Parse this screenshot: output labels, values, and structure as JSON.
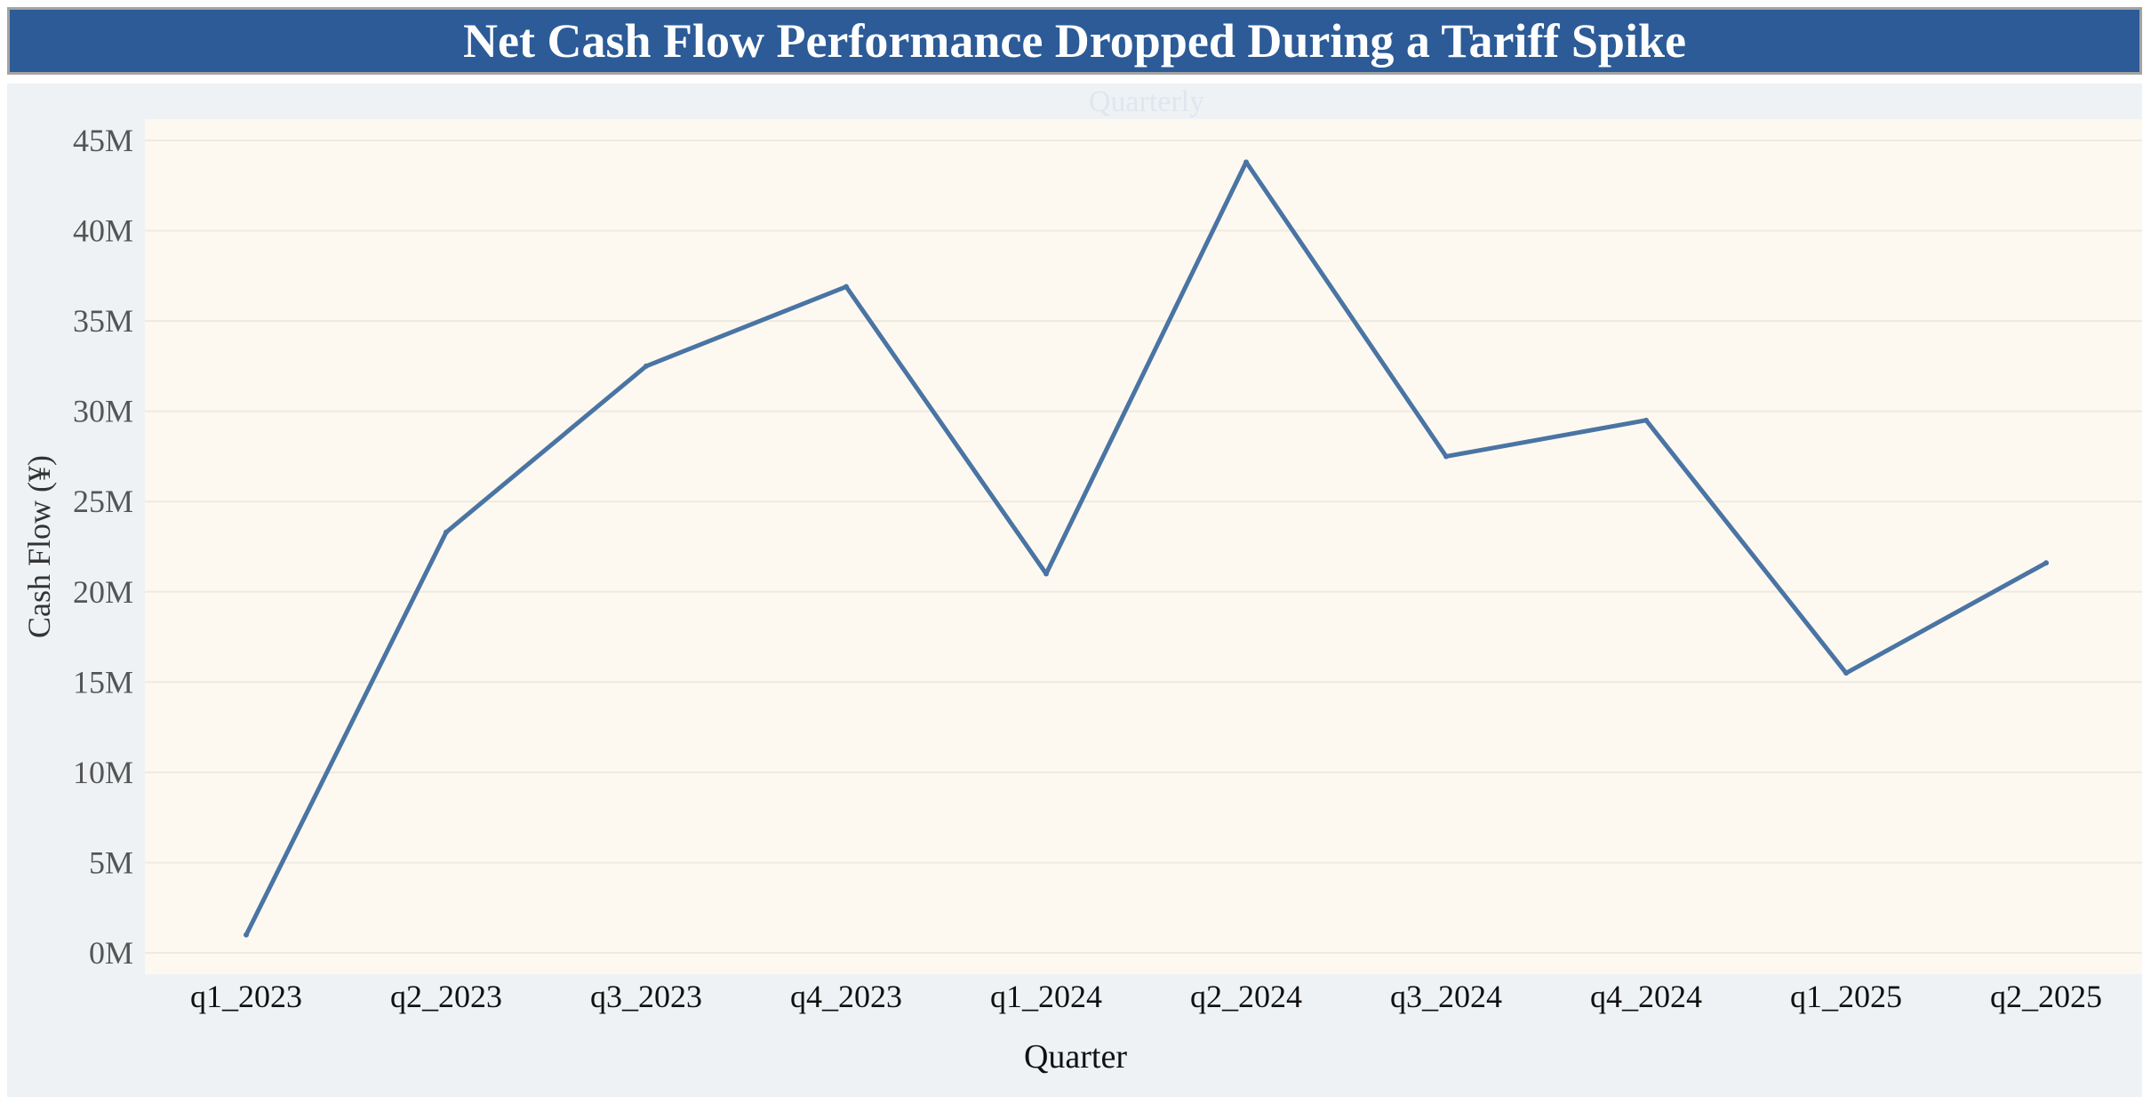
{
  "chart_data": {
    "type": "line",
    "title": "Net Cash Flow Performance Dropped During a Tariff Spike",
    "subtitle": "Quarterly",
    "xlabel": "Quarter",
    "ylabel": "Cash Flow (¥)",
    "categories": [
      "q1_2023",
      "q2_2023",
      "q3_2023",
      "q4_2023",
      "q1_2024",
      "q2_2024",
      "q3_2024",
      "q4_2024",
      "q1_2025",
      "q2_2025"
    ],
    "series": [
      {
        "values": [
          1.0,
          23.3,
          32.5,
          36.9,
          21.0,
          43.8,
          27.5,
          29.5,
          15.5,
          21.6
        ]
      }
    ],
    "ylim": [
      0,
      45
    ],
    "y_ticks": [
      0,
      5,
      10,
      15,
      20,
      25,
      30,
      35,
      40,
      45
    ],
    "y_tick_labels": [
      "0M",
      "5M",
      "10M",
      "15M",
      "20M",
      "25M",
      "30M",
      "35M",
      "40M",
      "45M"
    ],
    "grid": true,
    "colors": {
      "line": "#4a74a3",
      "title_bg": "#2c5b97",
      "plot_bg": "#fdf9f1",
      "frame_bg": "#eef2f5",
      "grid": "#efeae0"
    }
  }
}
